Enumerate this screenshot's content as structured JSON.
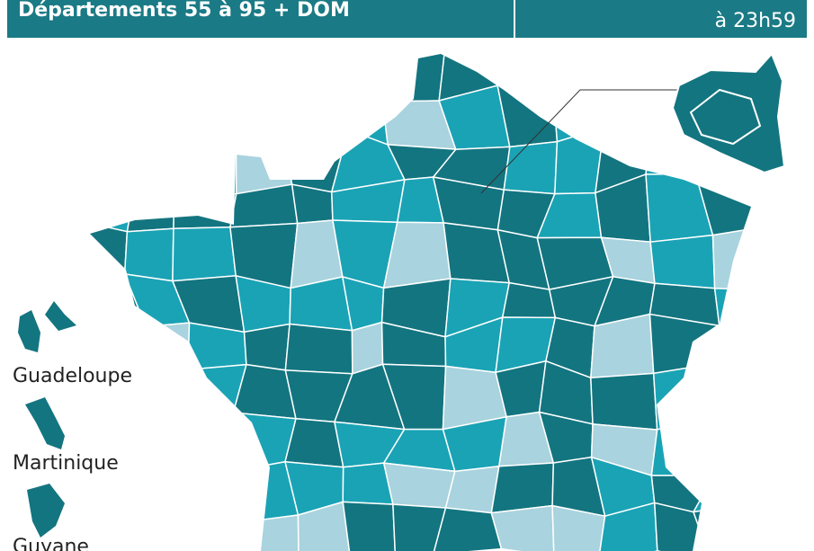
{
  "header": {
    "title": "Départements 55 à 95 + DOM",
    "date_line": "à 23h59"
  },
  "labels": {
    "guadeloupe": "Guadeloupe",
    "martinique": "Martinique",
    "guyane": "Guyane"
  }
}
